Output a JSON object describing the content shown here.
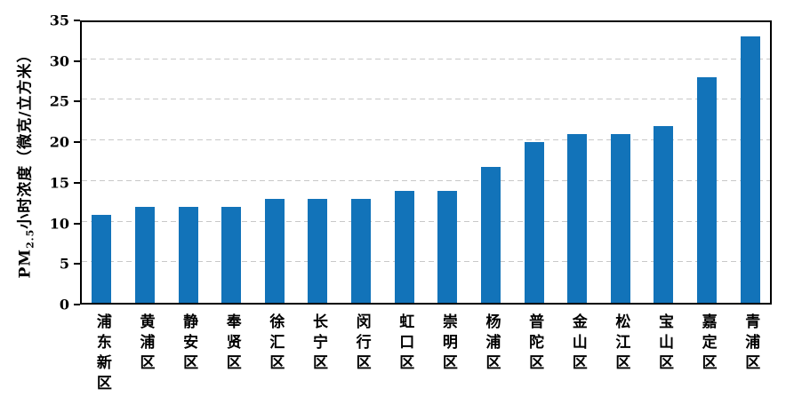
{
  "chart_data": {
    "type": "bar",
    "title": "",
    "categories": [
      "浦东新区",
      "黄浦区",
      "静安区",
      "奉贤区",
      "徐汇区",
      "长宁区",
      "闵行区",
      "虹口区",
      "崇明区",
      "杨浦区",
      "普陀区",
      "金山区",
      "松江区",
      "宝山区",
      "嘉定区",
      "青浦区"
    ],
    "values": [
      11,
      12,
      12,
      12,
      13,
      13,
      13,
      14,
      14,
      17,
      20,
      21,
      21,
      22,
      28,
      33
    ],
    "ylabel_parts": {
      "prefix": "PM",
      "subscript": "2.5",
      "suffix": "小时浓度（微克/立方米）"
    },
    "ylabel": "PM2.5小时浓度（微克/立方米）",
    "xlabel": "",
    "ylim": [
      0,
      35
    ],
    "yticks": [
      0,
      5,
      10,
      15,
      20,
      25,
      30,
      35
    ],
    "grid": "horizontal dashed gridlines every 5 units, plot area enclosed in solid black border",
    "legend": "none",
    "colors": {
      "bar": "#1273B9",
      "gridline": "#C8C8C8",
      "axis": "#000000",
      "background": "#FFFFFF"
    }
  }
}
